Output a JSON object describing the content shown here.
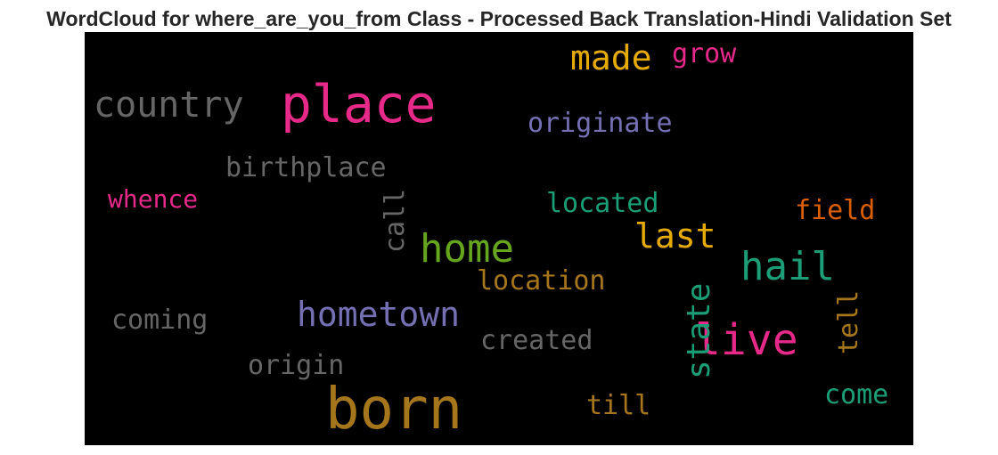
{
  "chart_data": {
    "type": "wordcloud",
    "title": "WordCloud for where_are_you_from Class - Processed Back Translation-Hindi Validation Set",
    "background": "#000000",
    "words": [
      {
        "text": "born",
        "color": "#a6761d"
      },
      {
        "text": "place",
        "color": "#e7298a"
      },
      {
        "text": "live",
        "color": "#e7298a"
      },
      {
        "text": "home",
        "color": "#66a61e"
      },
      {
        "text": "country",
        "color": "#666666"
      },
      {
        "text": "hometown",
        "color": "#7570b3"
      },
      {
        "text": "hail",
        "color": "#1b9e77"
      },
      {
        "text": "made",
        "color": "#e6ab02"
      },
      {
        "text": "last",
        "color": "#e6ab02"
      },
      {
        "text": "state",
        "color": "#1b9e77"
      },
      {
        "text": "originate",
        "color": "#7570b3"
      },
      {
        "text": "birthplace",
        "color": "#666666"
      },
      {
        "text": "whence",
        "color": "#e7298a"
      },
      {
        "text": "located",
        "color": "#1b9e77"
      },
      {
        "text": "location",
        "color": "#a6761d"
      },
      {
        "text": "coming",
        "color": "#666666"
      },
      {
        "text": "created",
        "color": "#666666"
      },
      {
        "text": "origin",
        "color": "#666666"
      },
      {
        "text": "call",
        "color": "#666666"
      },
      {
        "text": "grow",
        "color": "#e7298a"
      },
      {
        "text": "field",
        "color": "#d95f02"
      },
      {
        "text": "tell",
        "color": "#a6761d"
      },
      {
        "text": "come",
        "color": "#1b9e77"
      },
      {
        "text": "till",
        "color": "#a6761d"
      }
    ]
  }
}
